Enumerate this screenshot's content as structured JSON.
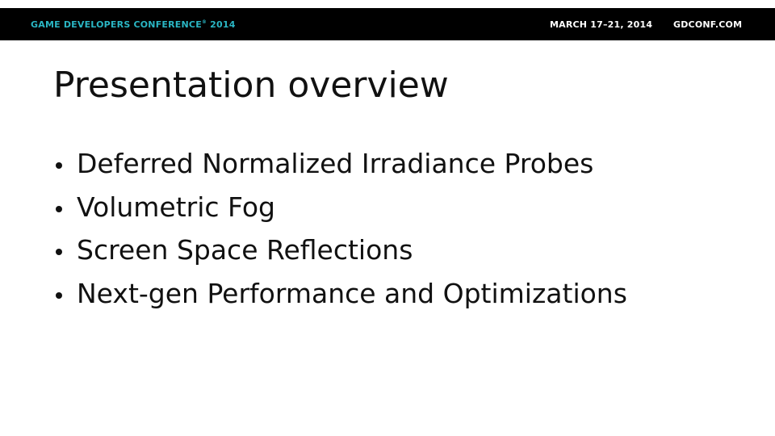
{
  "header": {
    "conference_name": "GAME DEVELOPERS CONFERENCE",
    "registered_mark": "®",
    "conference_year": "2014",
    "dates": "MARCH 17–21, 2014",
    "website": "GDCONF.COM"
  },
  "slide": {
    "title": "Presentation overview",
    "bullets": [
      "Deferred Normalized Irradiance Probes",
      "Volumetric Fog",
      "Screen Space Reflections",
      "Next-gen Performance and Optimizations"
    ]
  },
  "colors": {
    "header_background": "#000000",
    "conference_name": "#2ab6c4",
    "header_text": "#ffffff",
    "body_text": "#111111",
    "slide_background": "#ffffff"
  }
}
